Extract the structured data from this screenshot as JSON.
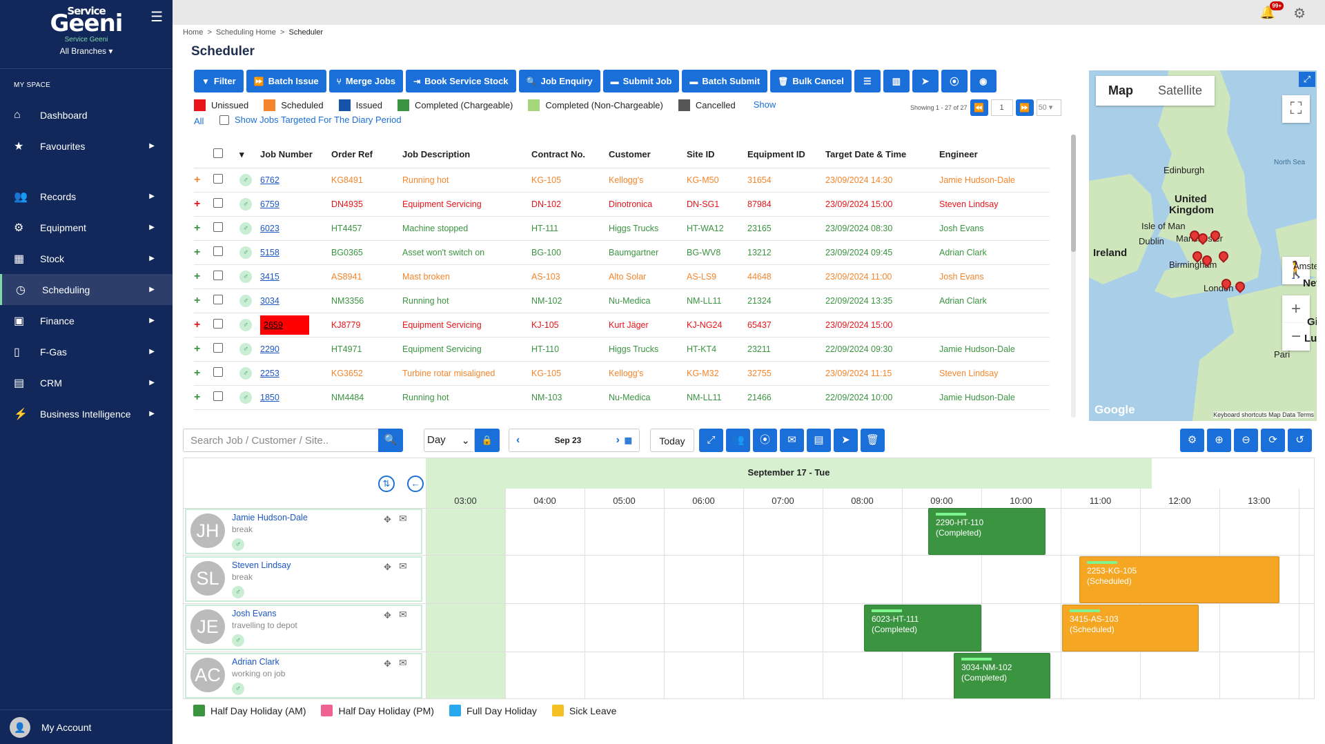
{
  "sidebar": {
    "brand_small": "Service",
    "brand_big": "Geeni",
    "brand_sub": "Service Geeni",
    "branch": "All Branches",
    "section": "MY SPACE",
    "items": [
      {
        "label": "Dashboard",
        "icon": "home-icon"
      },
      {
        "label": "Favourites",
        "icon": "star-icon"
      },
      {
        "label": "Records",
        "icon": "users-icon"
      },
      {
        "label": "Equipment",
        "icon": "cog-icon"
      },
      {
        "label": "Stock",
        "icon": "building-icon"
      },
      {
        "label": "Scheduling",
        "icon": "clock-icon",
        "active": true
      },
      {
        "label": "Finance",
        "icon": "money-icon"
      },
      {
        "label": "F-Gas",
        "icon": "gas-icon"
      },
      {
        "label": "CRM",
        "icon": "list-icon"
      },
      {
        "label": "Business Intelligence",
        "icon": "chart-icon"
      }
    ],
    "account": "My Account"
  },
  "topbar": {
    "notification_count": "99+"
  },
  "breadcrumb": {
    "home": "Home",
    "mid": "Scheduling Home",
    "current": "Scheduler"
  },
  "page_title": "Scheduler",
  "toolbar": {
    "filter": "Filter",
    "batch_issue": "Batch Issue",
    "merge_jobs": "Merge Jobs",
    "book_stock": "Book Service Stock",
    "job_enquiry": "Job Enquiry",
    "submit_job": "Submit Job",
    "batch_submit": "Batch Submit",
    "bulk_cancel": "Bulk Cancel"
  },
  "status_legend": [
    {
      "label": "Unissued",
      "color": "#e8141a"
    },
    {
      "label": "Scheduled",
      "color": "#f5852b"
    },
    {
      "label": "Issued",
      "color": "#1753a8"
    },
    {
      "label": "Completed (Chargeable)",
      "color": "#3a9440"
    },
    {
      "label": "Completed (Non-Chargeable)",
      "color": "#a6d67c"
    },
    {
      "label": "Cancelled",
      "color": "#555555"
    }
  ],
  "show_all": {
    "show": "Show",
    "all": "All"
  },
  "targeted_label": "Show Jobs Targeted For The Diary Period",
  "pager": {
    "showing": "Showing 1 - 27 of 27",
    "page": "1",
    "per_page": "50"
  },
  "table": {
    "columns": [
      "Job Number",
      "Order Ref",
      "Job Description",
      "Contract No.",
      "Customer",
      "Site ID",
      "Equipment ID",
      "Target Date & Time",
      "Engineer"
    ],
    "rows": [
      {
        "plus": "#f5852b",
        "color": "#f5852b",
        "job": "6762",
        "order": "KG8491",
        "desc": "Running hot",
        "contract": "KG-105",
        "customer": "Kellogg's",
        "site": "KG-M50",
        "equip": "31654",
        "target": "23/09/2024 14:30",
        "engineer": "Jamie Hudson-Dale"
      },
      {
        "plus": "#e8141a",
        "color": "#e8141a",
        "job": "6759",
        "order": "DN4935",
        "desc": "Equipment Servicing",
        "contract": "DN-102",
        "customer": "Dinotronica",
        "site": "DN-SG1",
        "equip": "87984",
        "target": "23/09/2024 15:00",
        "engineer": "Steven Lindsay"
      },
      {
        "plus": "#3a9440",
        "color": "#3a9440",
        "job": "6023",
        "order": "HT4457",
        "desc": "Machine stopped",
        "contract": "HT-111",
        "customer": "Higgs Trucks",
        "site": "HT-WA12",
        "equip": "23165",
        "target": "23/09/2024 08:30",
        "engineer": "Josh Evans"
      },
      {
        "plus": "#3a9440",
        "color": "#3a9440",
        "job": "5158",
        "order": "BG0365",
        "desc": "Asset won't switch on",
        "contract": "BG-100",
        "customer": "Baumgartner",
        "site": "BG-WV8",
        "equip": "13212",
        "target": "23/09/2024 09:45",
        "engineer": "Adrian Clark"
      },
      {
        "plus": "#3a9440",
        "color": "#f5852b",
        "job": "3415",
        "order": "AS8941",
        "desc": "Mast broken",
        "contract": "AS-103",
        "customer": "Alto Solar",
        "site": "AS-LS9",
        "equip": "44648",
        "target": "23/09/2024 11:00",
        "engineer": "Josh Evans"
      },
      {
        "plus": "#3a9440",
        "color": "#3a9440",
        "job": "3034",
        "order": "NM3356",
        "desc": "Running hot",
        "contract": "NM-102",
        "customer": "Nu-Medica",
        "site": "NM-LL11",
        "equip": "21324",
        "target": "22/09/2024 13:35",
        "engineer": "Adrian Clark"
      },
      {
        "plus": "#e8141a",
        "color": "#e8141a",
        "job": "2659",
        "order": "KJ8779",
        "desc": "Equipment Servicing",
        "contract": "KJ-105",
        "customer": "Kurt Jäger",
        "site": "KJ-NG24",
        "equip": "65437",
        "target": "23/09/2024 15:00",
        "engineer": "",
        "highlight": true
      },
      {
        "plus": "#3a9440",
        "color": "#3a9440",
        "job": "2290",
        "order": "HT4971",
        "desc": "Equipment Servicing",
        "contract": "HT-110",
        "customer": "Higgs Trucks",
        "site": "HT-KT4",
        "equip": "23211",
        "target": "22/09/2024 09:30",
        "engineer": "Jamie Hudson-Dale"
      },
      {
        "plus": "#3a9440",
        "color": "#f5852b",
        "job": "2253",
        "order": "KG3652",
        "desc": "Turbine rotar misaligned",
        "contract": "KG-105",
        "customer": "Kellogg's",
        "site": "KG-M32",
        "equip": "32755",
        "target": "23/09/2024 11:15",
        "engineer": "Steven Lindsay"
      },
      {
        "plus": "#3a9440",
        "color": "#3a9440",
        "job": "1850",
        "order": "NM4484",
        "desc": "Running hot",
        "contract": "NM-103",
        "customer": "Nu-Medica",
        "site": "NM-LL11",
        "equip": "21466",
        "target": "22/09/2024 10:00",
        "engineer": "Jamie Hudson-Dale"
      }
    ]
  },
  "map": {
    "tab_map": "Map",
    "tab_sat": "Satellite",
    "labels": [
      "North Sea",
      "Edinburgh",
      "United",
      "Kingdom",
      "Isle of Man",
      "Dublin",
      "Ireland",
      "Manchester",
      "Birmingham",
      "London",
      "Amste",
      "Net",
      "Pari",
      "Lu",
      "Gi"
    ],
    "google": "Google",
    "attribution": "Keyboard shortcuts   Map Data   Terms"
  },
  "scheduler": {
    "search_placeholder": "Search Job / Customer / Site..",
    "view": "Day",
    "date": "Sep 23",
    "today": "Today",
    "day_header": "September 17 - Tue",
    "hours": [
      "03:00",
      "04:00",
      "05:00",
      "06:00",
      "07:00",
      "08:00",
      "09:00",
      "10:00",
      "11:00",
      "12:00",
      "13:00"
    ],
    "engineers": [
      {
        "initials": "JH",
        "name": "Jamie Hudson-Dale",
        "status": "break"
      },
      {
        "initials": "SL",
        "name": "Steven Lindsay",
        "status": "break"
      },
      {
        "initials": "JE",
        "name": "Josh Evans",
        "status": "travelling to depot"
      },
      {
        "initials": "AC",
        "name": "Adrian Clark",
        "status": "working on job"
      }
    ],
    "jobs": [
      {
        "ref": "2290-HT-110",
        "state": "(Completed)"
      },
      {
        "ref": "2253-KG-105",
        "state": "(Scheduled)"
      },
      {
        "ref": "6023-HT-111",
        "state": "(Completed)"
      },
      {
        "ref": "3415-AS-103",
        "state": "(Scheduled)"
      },
      {
        "ref": "3034-NM-102",
        "state": "(Completed)"
      }
    ]
  },
  "leave_legend": [
    {
      "label": "Half Day Holiday (AM)",
      "color": "#3a9440"
    },
    {
      "label": "Half Day Holiday (PM)",
      "color": "#f06292"
    },
    {
      "label": "Full Day Holiday",
      "color": "#29a8f0"
    },
    {
      "label": "Sick Leave",
      "color": "#f5c023"
    }
  ]
}
